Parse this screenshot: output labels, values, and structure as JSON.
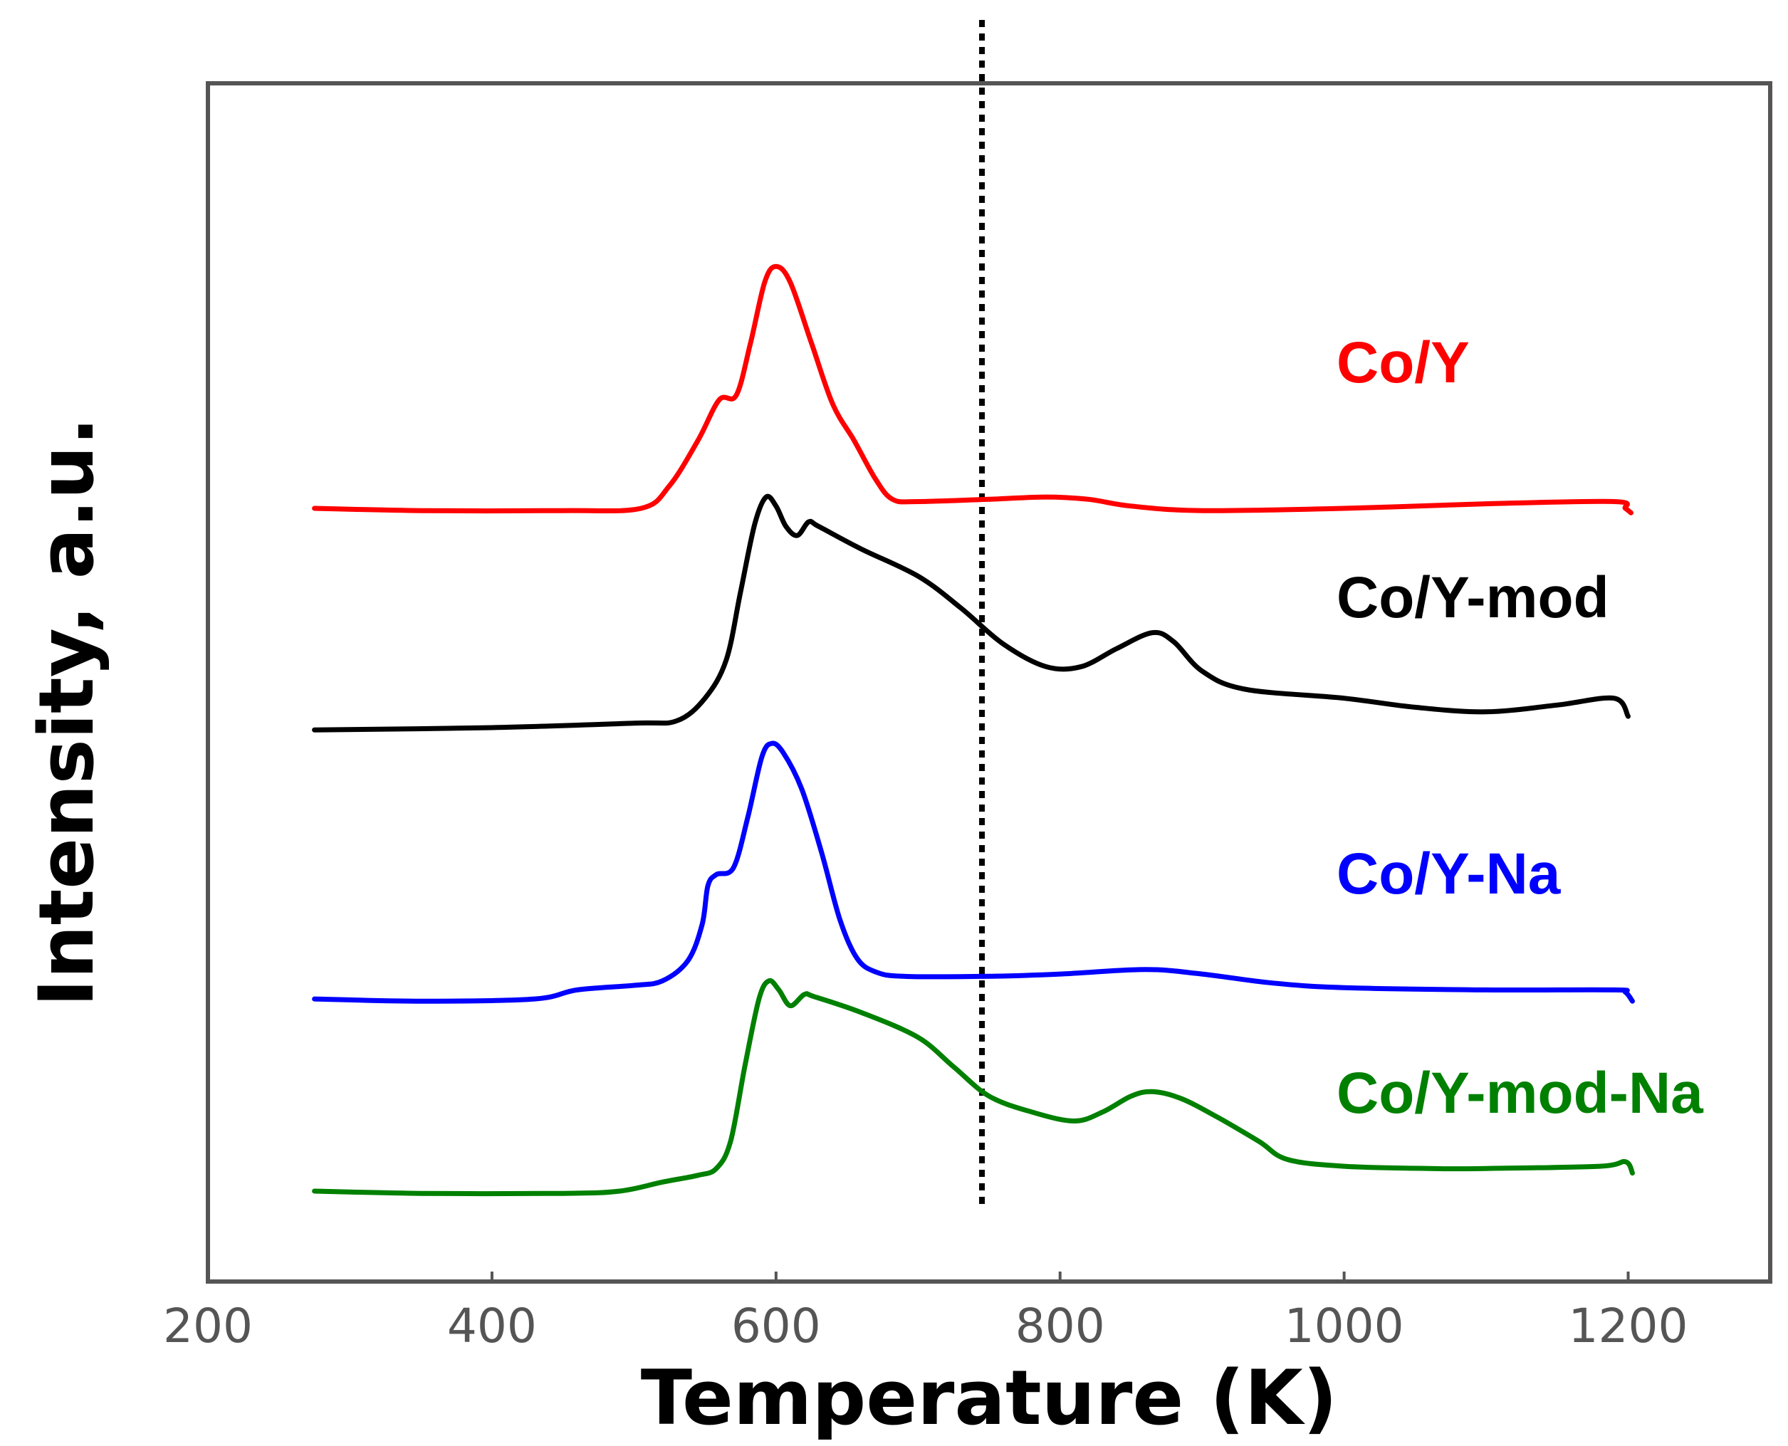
{
  "chart_data": {
    "type": "line",
    "title": "",
    "xlabel": "Temperature (K)",
    "ylabel": "Intensity, a.u.",
    "xlim": [
      200,
      1300
    ],
    "ylim": [
      0,
      5.3
    ],
    "x_ticks": [
      "200",
      "400",
      "600",
      "800",
      "1000",
      "1200"
    ],
    "x_tick_values": [
      200,
      400,
      600,
      800,
      1000,
      1200
    ],
    "y_ticks_shown": false,
    "reference_line": {
      "x": 745,
      "style": "dotted",
      "color": "#000000"
    },
    "series": [
      {
        "name": "Co/Y",
        "color": "#ff0000",
        "points": [
          [
            275,
            3.42
          ],
          [
            350,
            3.41
          ],
          [
            450,
            3.41
          ],
          [
            505,
            3.42
          ],
          [
            525,
            3.52
          ],
          [
            545,
            3.72
          ],
          [
            560,
            3.9
          ],
          [
            572,
            3.92
          ],
          [
            582,
            4.15
          ],
          [
            592,
            4.42
          ],
          [
            600,
            4.49
          ],
          [
            610,
            4.42
          ],
          [
            625,
            4.15
          ],
          [
            640,
            3.88
          ],
          [
            655,
            3.72
          ],
          [
            670,
            3.55
          ],
          [
            682,
            3.46
          ],
          [
            700,
            3.45
          ],
          [
            750,
            3.46
          ],
          [
            790,
            3.47
          ],
          [
            820,
            3.46
          ],
          [
            850,
            3.43
          ],
          [
            900,
            3.41
          ],
          [
            1000,
            3.42
          ],
          [
            1100,
            3.44
          ],
          [
            1190,
            3.45
          ],
          [
            1198,
            3.42
          ],
          [
            1202,
            3.4
          ]
        ]
      },
      {
        "name": "Co/Y-mod",
        "color": "#000000",
        "points": [
          [
            275,
            2.44
          ],
          [
            400,
            2.45
          ],
          [
            500,
            2.47
          ],
          [
            530,
            2.48
          ],
          [
            550,
            2.58
          ],
          [
            565,
            2.75
          ],
          [
            575,
            3.05
          ],
          [
            585,
            3.35
          ],
          [
            593,
            3.47
          ],
          [
            600,
            3.43
          ],
          [
            607,
            3.34
          ],
          [
            615,
            3.3
          ],
          [
            623,
            3.36
          ],
          [
            630,
            3.34
          ],
          [
            660,
            3.24
          ],
          [
            700,
            3.12
          ],
          [
            730,
            2.98
          ],
          [
            760,
            2.82
          ],
          [
            790,
            2.72
          ],
          [
            815,
            2.72
          ],
          [
            840,
            2.8
          ],
          [
            865,
            2.87
          ],
          [
            880,
            2.83
          ],
          [
            900,
            2.7
          ],
          [
            930,
            2.62
          ],
          [
            1000,
            2.58
          ],
          [
            1050,
            2.54
          ],
          [
            1100,
            2.52
          ],
          [
            1150,
            2.55
          ],
          [
            1190,
            2.58
          ],
          [
            1200,
            2.5
          ]
        ]
      },
      {
        "name": "Co/Y-Na",
        "color": "#0000ff",
        "points": [
          [
            275,
            1.25
          ],
          [
            350,
            1.24
          ],
          [
            430,
            1.25
          ],
          [
            460,
            1.29
          ],
          [
            500,
            1.31
          ],
          [
            520,
            1.33
          ],
          [
            538,
            1.42
          ],
          [
            548,
            1.58
          ],
          [
            552,
            1.75
          ],
          [
            558,
            1.8
          ],
          [
            570,
            1.83
          ],
          [
            580,
            2.05
          ],
          [
            590,
            2.32
          ],
          [
            597,
            2.38
          ],
          [
            605,
            2.34
          ],
          [
            618,
            2.18
          ],
          [
            632,
            1.9
          ],
          [
            645,
            1.6
          ],
          [
            657,
            1.43
          ],
          [
            670,
            1.37
          ],
          [
            690,
            1.35
          ],
          [
            750,
            1.35
          ],
          [
            800,
            1.36
          ],
          [
            860,
            1.38
          ],
          [
            900,
            1.36
          ],
          [
            950,
            1.32
          ],
          [
            1000,
            1.3
          ],
          [
            1100,
            1.29
          ],
          [
            1190,
            1.29
          ],
          [
            1198,
            1.28
          ],
          [
            1203,
            1.24
          ]
        ]
      },
      {
        "name": "Co/Y-mod-Na",
        "color": "#008000",
        "points": [
          [
            275,
            0.4
          ],
          [
            350,
            0.39
          ],
          [
            450,
            0.39
          ],
          [
            490,
            0.4
          ],
          [
            520,
            0.44
          ],
          [
            545,
            0.47
          ],
          [
            558,
            0.5
          ],
          [
            568,
            0.62
          ],
          [
            578,
            0.95
          ],
          [
            588,
            1.25
          ],
          [
            595,
            1.33
          ],
          [
            602,
            1.29
          ],
          [
            610,
            1.22
          ],
          [
            620,
            1.27
          ],
          [
            627,
            1.26
          ],
          [
            660,
            1.19
          ],
          [
            700,
            1.08
          ],
          [
            725,
            0.95
          ],
          [
            750,
            0.82
          ],
          [
            780,
            0.75
          ],
          [
            810,
            0.71
          ],
          [
            830,
            0.75
          ],
          [
            850,
            0.82
          ],
          [
            865,
            0.84
          ],
          [
            885,
            0.81
          ],
          [
            910,
            0.73
          ],
          [
            940,
            0.62
          ],
          [
            960,
            0.54
          ],
          [
            1000,
            0.51
          ],
          [
            1060,
            0.5
          ],
          [
            1100,
            0.5
          ],
          [
            1180,
            0.51
          ],
          [
            1198,
            0.53
          ],
          [
            1203,
            0.48
          ]
        ]
      }
    ],
    "legend": [
      {
        "label": "Co/Y",
        "color": "#ff0000"
      },
      {
        "label": "Co/Y-mod",
        "color": "#000000"
      },
      {
        "label": "Co/Y-Na",
        "color": "#0000ff"
      },
      {
        "label": "Co/Y-mod-Na",
        "color": "#008000"
      }
    ]
  }
}
